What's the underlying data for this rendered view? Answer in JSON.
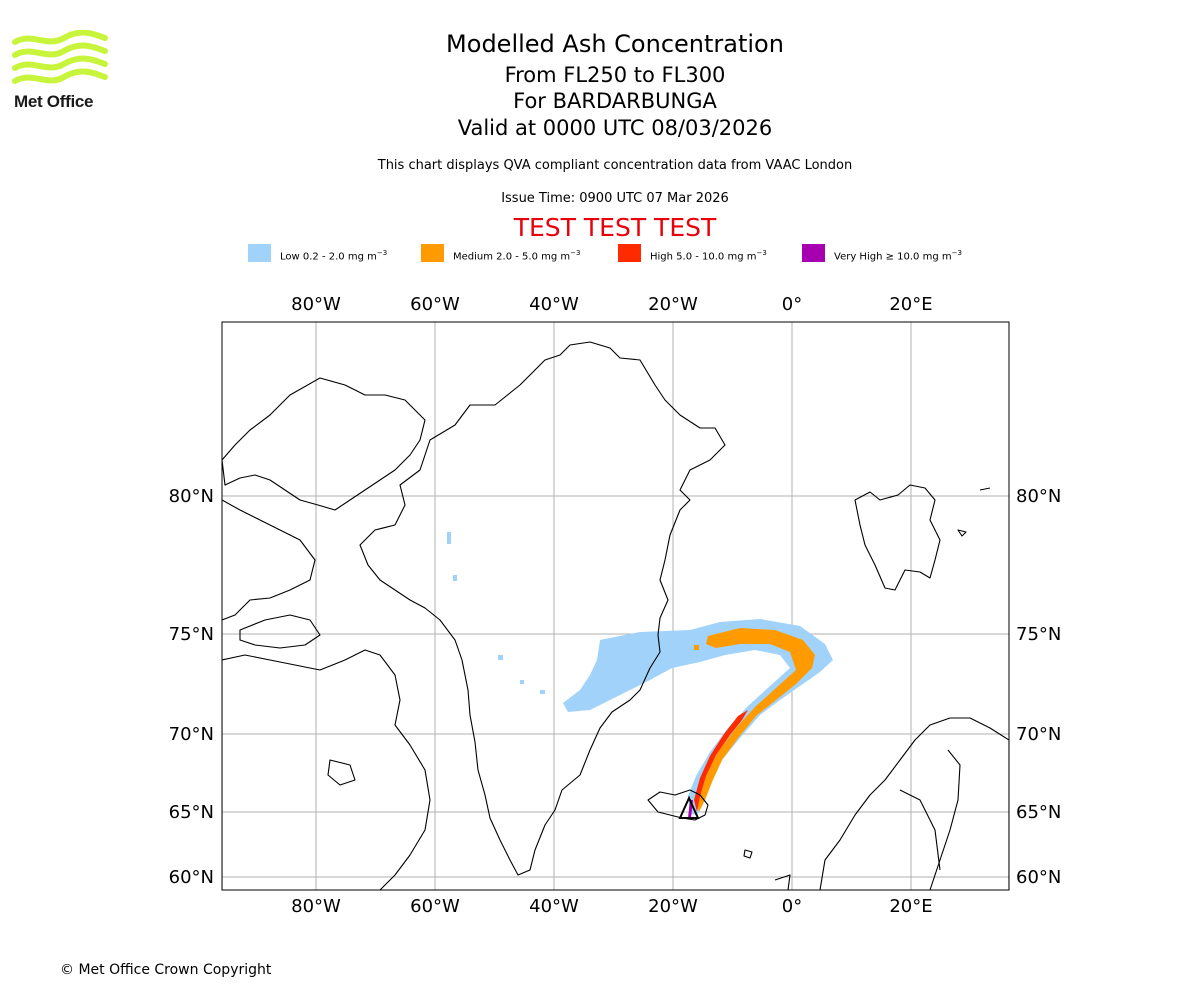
{
  "logo": {
    "text": "Met Office",
    "colors": {
      "stripes": "#c8f53c"
    }
  },
  "header": {
    "title": "Modelled Ash Concentration",
    "levels": "From FL250 to FL300",
    "volcano": "For BARDARBUNGA",
    "valid": "Valid at 0000 UTC 08/03/2026",
    "description": "This chart displays QVA compliant concentration data from VAAC London",
    "issue_time": "Issue Time: 0900 UTC 07 Mar 2026",
    "test_banner": "TEST TEST TEST"
  },
  "legend": [
    {
      "label": "Low 0.2 - 2.0 mg m",
      "color": "#a0d2fa"
    },
    {
      "label": "Medium 2.0 - 5.0 mg m",
      "color": "#ff9a00"
    },
    {
      "label": "High 5.0 - 10.0 mg m",
      "color": "#ff2a00"
    },
    {
      "label": "Very High ≥ 10.0 mg m",
      "color": "#a600b0"
    }
  ],
  "legend_unit_exponent": "−3",
  "map": {
    "longitude_labels": [
      "80°W",
      "60°W",
      "40°W",
      "20°W",
      "0°",
      "20°E"
    ],
    "latitude_labels": [
      "80°N",
      "75°N",
      "70°N",
      "65°N",
      "60°N"
    ],
    "grid_color": "#b0b0b0",
    "volcano_marker": "triangle-icon"
  },
  "footer": {
    "copyright": "© Met Office Crown Copyright"
  }
}
